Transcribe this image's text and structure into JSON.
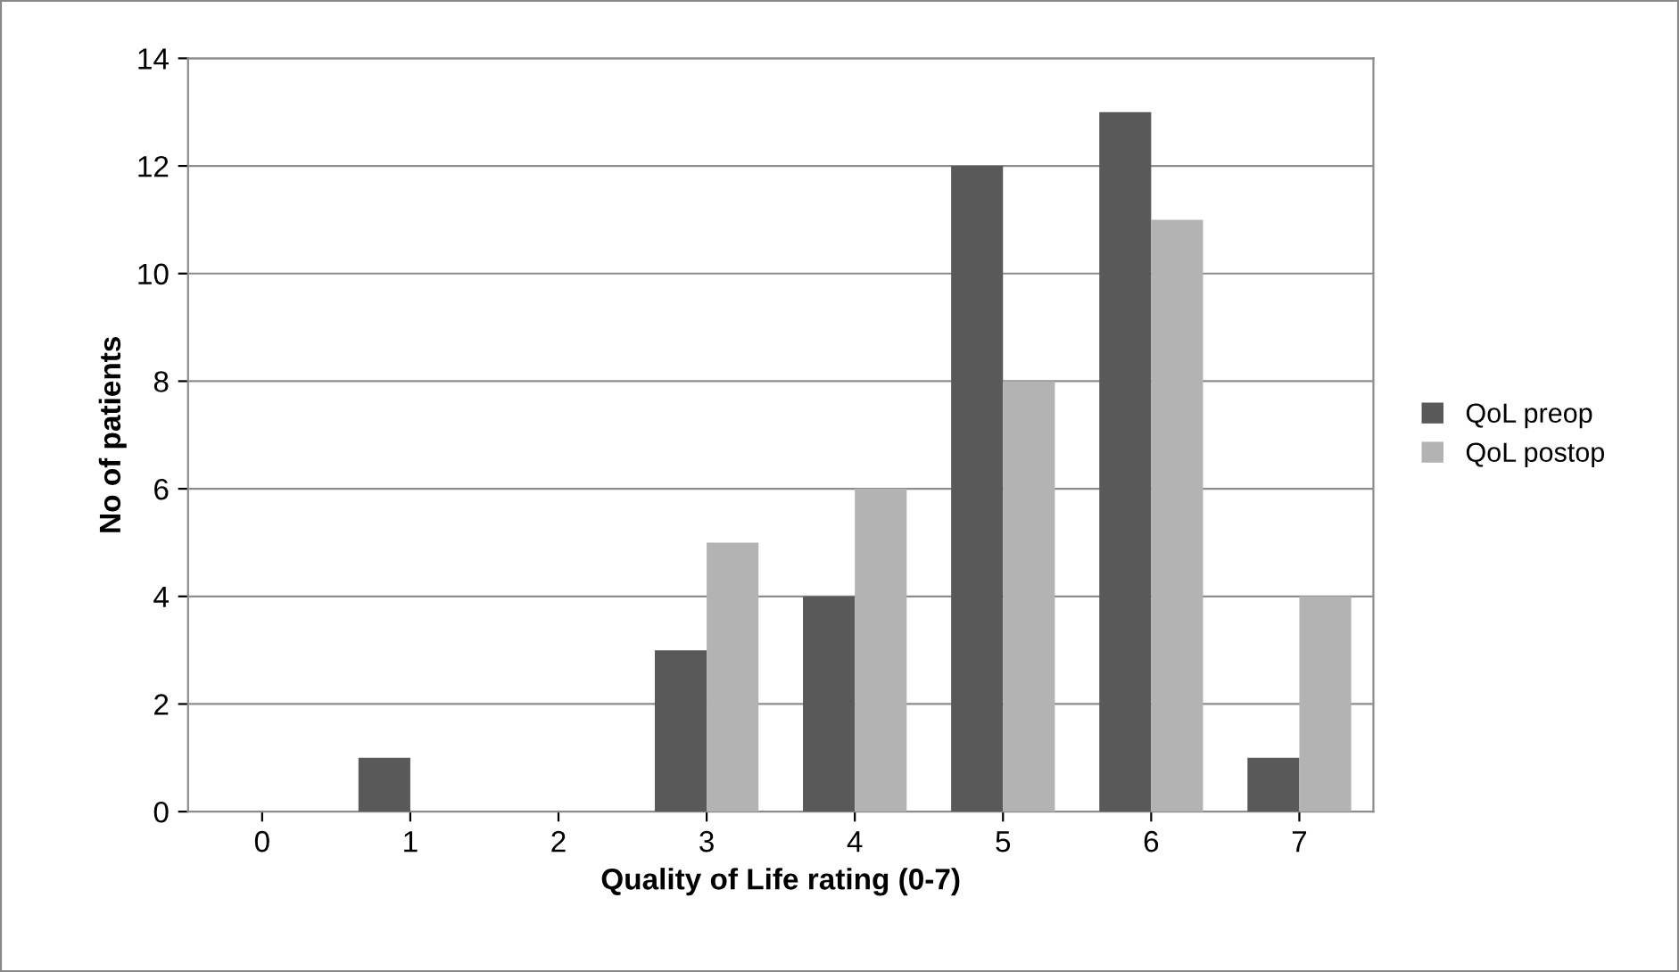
{
  "chart_data": {
    "type": "bar",
    "xlabel": "Quality of Life rating (0-7)",
    "ylabel": "No of patients",
    "categories": [
      "0",
      "1",
      "2",
      "3",
      "4",
      "5",
      "6",
      "7"
    ],
    "series": [
      {
        "name": "QoL preop",
        "color": "#595959",
        "values": [
          0,
          1,
          0,
          3,
          4,
          12,
          13,
          1
        ]
      },
      {
        "name": "QoL postop",
        "color": "#b3b3b3",
        "values": [
          0,
          0,
          0,
          5,
          6,
          8,
          11,
          4
        ]
      }
    ],
    "ylim": [
      0,
      14
    ],
    "yticks": [
      0,
      2,
      4,
      6,
      8,
      10,
      12,
      14
    ],
    "grid": "y",
    "legend": "right"
  }
}
